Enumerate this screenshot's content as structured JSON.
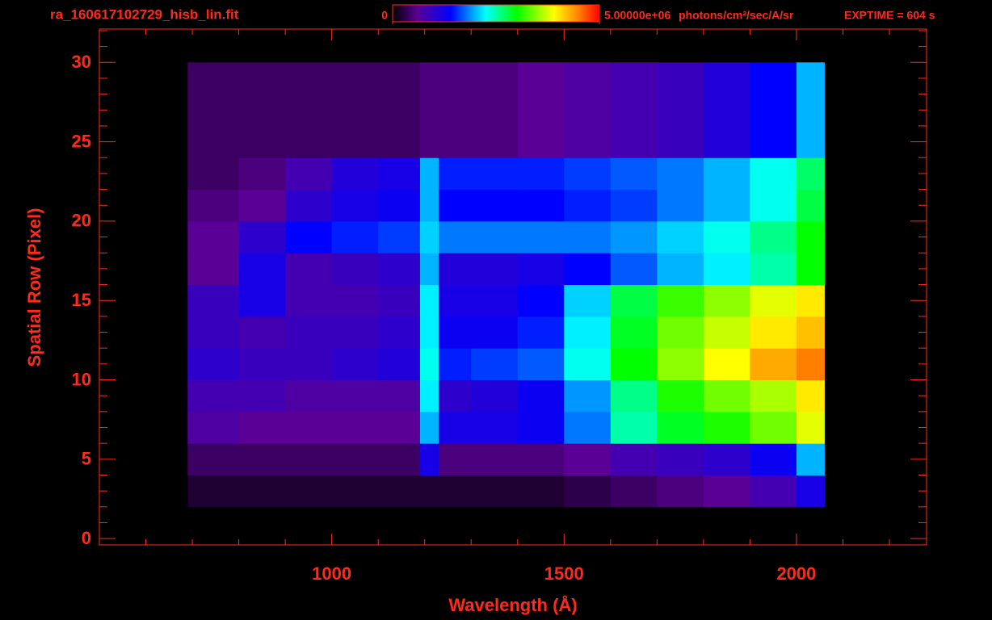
{
  "chart_data": {
    "type": "heatmap",
    "title": "ra_160617102729_hisb_lin.fit",
    "exptime": "EXPTIME = 604 s",
    "x_label": "Wavelength (Å)",
    "y_label": "Spatial Row (Pixel)",
    "xlim": [
      500,
      2280
    ],
    "ylim": [
      -0.4,
      32.1
    ],
    "xticks": [
      1000,
      1500,
      2000
    ],
    "yticks": [
      0,
      5,
      10,
      15,
      20,
      25,
      30
    ],
    "xminorticks": [
      600,
      700,
      800,
      900,
      1100,
      1200,
      1300,
      1400,
      1600,
      1700,
      1800,
      1900,
      2100,
      2200
    ],
    "yminorticks": [
      1,
      2,
      3,
      4,
      6,
      7,
      8,
      9,
      11,
      12,
      13,
      14,
      16,
      17,
      18,
      19,
      21,
      22,
      23,
      24,
      26,
      27,
      28,
      29,
      31,
      32
    ],
    "axis_color": "#ff2a1a",
    "zlim": [
      0,
      5000000
    ],
    "zticks": [
      0,
      {
        "value": 5000000,
        "label": "5.00000e+06"
      }
    ],
    "z_label": "photons/cm²/sec/A/sr",
    "colorscale": [
      [
        0,
        "#000000"
      ],
      [
        0.12,
        "#5a0096"
      ],
      [
        0.28,
        "#0000ff"
      ],
      [
        0.45,
        "#00ffff"
      ],
      [
        0.6,
        "#00ff00"
      ],
      [
        0.78,
        "#ffff00"
      ],
      [
        0.9,
        "#ff8000"
      ],
      [
        1,
        "#ff0000"
      ]
    ],
    "xbins": [
      690,
      800,
      900,
      1000,
      1100,
      1190,
      1230,
      1300,
      1400,
      1500,
      1600,
      1700,
      1800,
      1900,
      2000,
      2060
    ],
    "ybins": [
      2,
      4,
      6,
      8,
      10,
      12,
      14,
      16,
      18,
      20,
      22,
      24,
      30
    ],
    "z": [
      [
        200000,
        200000,
        200000,
        200000,
        200000,
        200000,
        200000,
        200000,
        200000,
        300000,
        400000,
        500000,
        600000,
        800000,
        1200000
      ],
      [
        400000,
        400000,
        400000,
        400000,
        400000,
        1200000,
        500000,
        500000,
        500000,
        600000,
        800000,
        900000,
        1000000,
        1300000,
        2000000
      ],
      [
        700000,
        600000,
        600000,
        600000,
        600000,
        2000000,
        1200000,
        1200000,
        1300000,
        1800000,
        2500000,
        2900000,
        3100000,
        3400000,
        3800000
      ],
      [
        800000,
        800000,
        700000,
        700000,
        700000,
        2200000,
        1000000,
        1100000,
        1300000,
        1900000,
        2600000,
        3100000,
        3400000,
        3600000,
        4000000
      ],
      [
        1000000,
        900000,
        900000,
        1000000,
        1100000,
        2300000,
        1500000,
        1600000,
        1700000,
        2300000,
        3000000,
        3500000,
        3900000,
        4300000,
        4500000
      ],
      [
        900000,
        800000,
        900000,
        900000,
        1000000,
        2200000,
        1300000,
        1300000,
        1500000,
        2200000,
        2900000,
        3400000,
        3700000,
        4000000,
        4200000
      ],
      [
        900000,
        1200000,
        800000,
        800000,
        900000,
        2200000,
        1200000,
        1200000,
        1400000,
        2100000,
        2800000,
        3200000,
        3500000,
        3800000,
        4000000
      ],
      [
        600000,
        1200000,
        800000,
        900000,
        1000000,
        2000000,
        1100000,
        1100000,
        1200000,
        1400000,
        1700000,
        2000000,
        2200000,
        2500000,
        3000000
      ],
      [
        600000,
        1000000,
        1400000,
        1500000,
        1600000,
        2100000,
        1800000,
        1800000,
        1800000,
        1800000,
        1900000,
        2100000,
        2300000,
        2600000,
        3000000
      ],
      [
        500000,
        600000,
        1000000,
        1200000,
        1300000,
        2000000,
        1400000,
        1400000,
        1400000,
        1500000,
        1600000,
        1800000,
        2000000,
        2300000,
        2800000
      ],
      [
        400000,
        500000,
        800000,
        1100000,
        1200000,
        2000000,
        1500000,
        1500000,
        1500000,
        1600000,
        1700000,
        1800000,
        2000000,
        2300000,
        2700000
      ],
      [
        400000,
        400000,
        400000,
        400000,
        400000,
        500000,
        500000,
        500000,
        600000,
        700000,
        800000,
        900000,
        1100000,
        1400000,
        2000000
      ]
    ]
  }
}
